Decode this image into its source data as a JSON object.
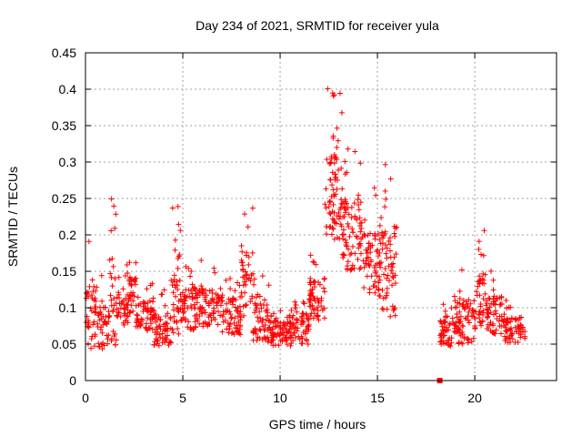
{
  "chart_data": {
    "type": "scatter",
    "title": "Day 234 of 2021, SRMTID for receiver yula",
    "xlabel": "GPS time / hours",
    "ylabel": "SRMTID / TECUs",
    "xlim": [
      0,
      24.2
    ],
    "ylim": [
      0,
      0.45
    ],
    "x_ticks": [
      0,
      5,
      10,
      15,
      20
    ],
    "x_tick_labels": [
      "0",
      "5",
      "10",
      "15",
      "20"
    ],
    "y_ticks": [
      0,
      0.05,
      0.1,
      0.15,
      0.2,
      0.25,
      0.3,
      0.35,
      0.4,
      0.45
    ],
    "y_tick_labels": [
      "0",
      "0.05",
      "0.1",
      "0.15",
      "0.2",
      "0.25",
      "0.3",
      "0.35",
      "0.4",
      "0.45"
    ],
    "grid": true,
    "marker": "+",
    "series_color": "#ff0000",
    "special_point": {
      "x": 18.2,
      "y": 0.0,
      "marker": "square"
    },
    "series": [
      {
        "name": "SRMTID",
        "segments": [
          {
            "x_start": 0.0,
            "x_end": 0.6,
            "base": 0.085,
            "spread": 0.1,
            "n": 40
          },
          {
            "x_start": 0.6,
            "x_end": 1.2,
            "base": 0.07,
            "spread": 0.07,
            "n": 40
          },
          {
            "x_start": 1.2,
            "x_end": 1.6,
            "base": 0.11,
            "spread": 0.14,
            "n": 30
          },
          {
            "x_start": 1.6,
            "x_end": 2.2,
            "base": 0.1,
            "spread": 0.06,
            "n": 40
          },
          {
            "x_start": 2.2,
            "x_end": 2.6,
            "base": 0.12,
            "spread": 0.06,
            "n": 30
          },
          {
            "x_start": 2.6,
            "x_end": 3.5,
            "base": 0.09,
            "spread": 0.05,
            "n": 60
          },
          {
            "x_start": 3.5,
            "x_end": 4.4,
            "base": 0.07,
            "spread": 0.05,
            "n": 60
          },
          {
            "x_start": 4.4,
            "x_end": 4.9,
            "base": 0.12,
            "spread": 0.13,
            "n": 40
          },
          {
            "x_start": 4.9,
            "x_end": 5.6,
            "base": 0.1,
            "spread": 0.07,
            "n": 50
          },
          {
            "x_start": 5.6,
            "x_end": 7.0,
            "base": 0.1,
            "spread": 0.06,
            "n": 90
          },
          {
            "x_start": 7.0,
            "x_end": 8.0,
            "base": 0.09,
            "spread": 0.06,
            "n": 70
          },
          {
            "x_start": 8.0,
            "x_end": 8.6,
            "base": 0.13,
            "spread": 0.11,
            "n": 40
          },
          {
            "x_start": 8.6,
            "x_end": 9.5,
            "base": 0.08,
            "spread": 0.06,
            "n": 60
          },
          {
            "x_start": 9.5,
            "x_end": 10.5,
            "base": 0.065,
            "spread": 0.04,
            "n": 70
          },
          {
            "x_start": 10.5,
            "x_end": 11.5,
            "base": 0.07,
            "spread": 0.05,
            "n": 70
          },
          {
            "x_start": 11.5,
            "x_end": 12.3,
            "base": 0.11,
            "spread": 0.06,
            "n": 60
          },
          {
            "x_start": 12.3,
            "x_end": 13.2,
            "base": 0.25,
            "spread": 0.14,
            "n": 80
          },
          {
            "x_start": 13.2,
            "x_end": 14.2,
            "base": 0.2,
            "spread": 0.11,
            "n": 80
          },
          {
            "x_start": 14.2,
            "x_end": 15.2,
            "base": 0.16,
            "spread": 0.1,
            "n": 70
          },
          {
            "x_start": 15.2,
            "x_end": 16.0,
            "base": 0.15,
            "spread": 0.14,
            "n": 60
          },
          {
            "x_start": 18.2,
            "x_end": 19.0,
            "base": 0.07,
            "spread": 0.05,
            "n": 55
          },
          {
            "x_start": 19.0,
            "x_end": 20.0,
            "base": 0.08,
            "spread": 0.07,
            "n": 70
          },
          {
            "x_start": 20.0,
            "x_end": 20.6,
            "base": 0.11,
            "spread": 0.09,
            "n": 45
          },
          {
            "x_start": 20.6,
            "x_end": 21.4,
            "base": 0.09,
            "spread": 0.06,
            "n": 55
          },
          {
            "x_start": 21.4,
            "x_end": 22.6,
            "base": 0.07,
            "spread": 0.04,
            "n": 70
          }
        ]
      }
    ]
  }
}
